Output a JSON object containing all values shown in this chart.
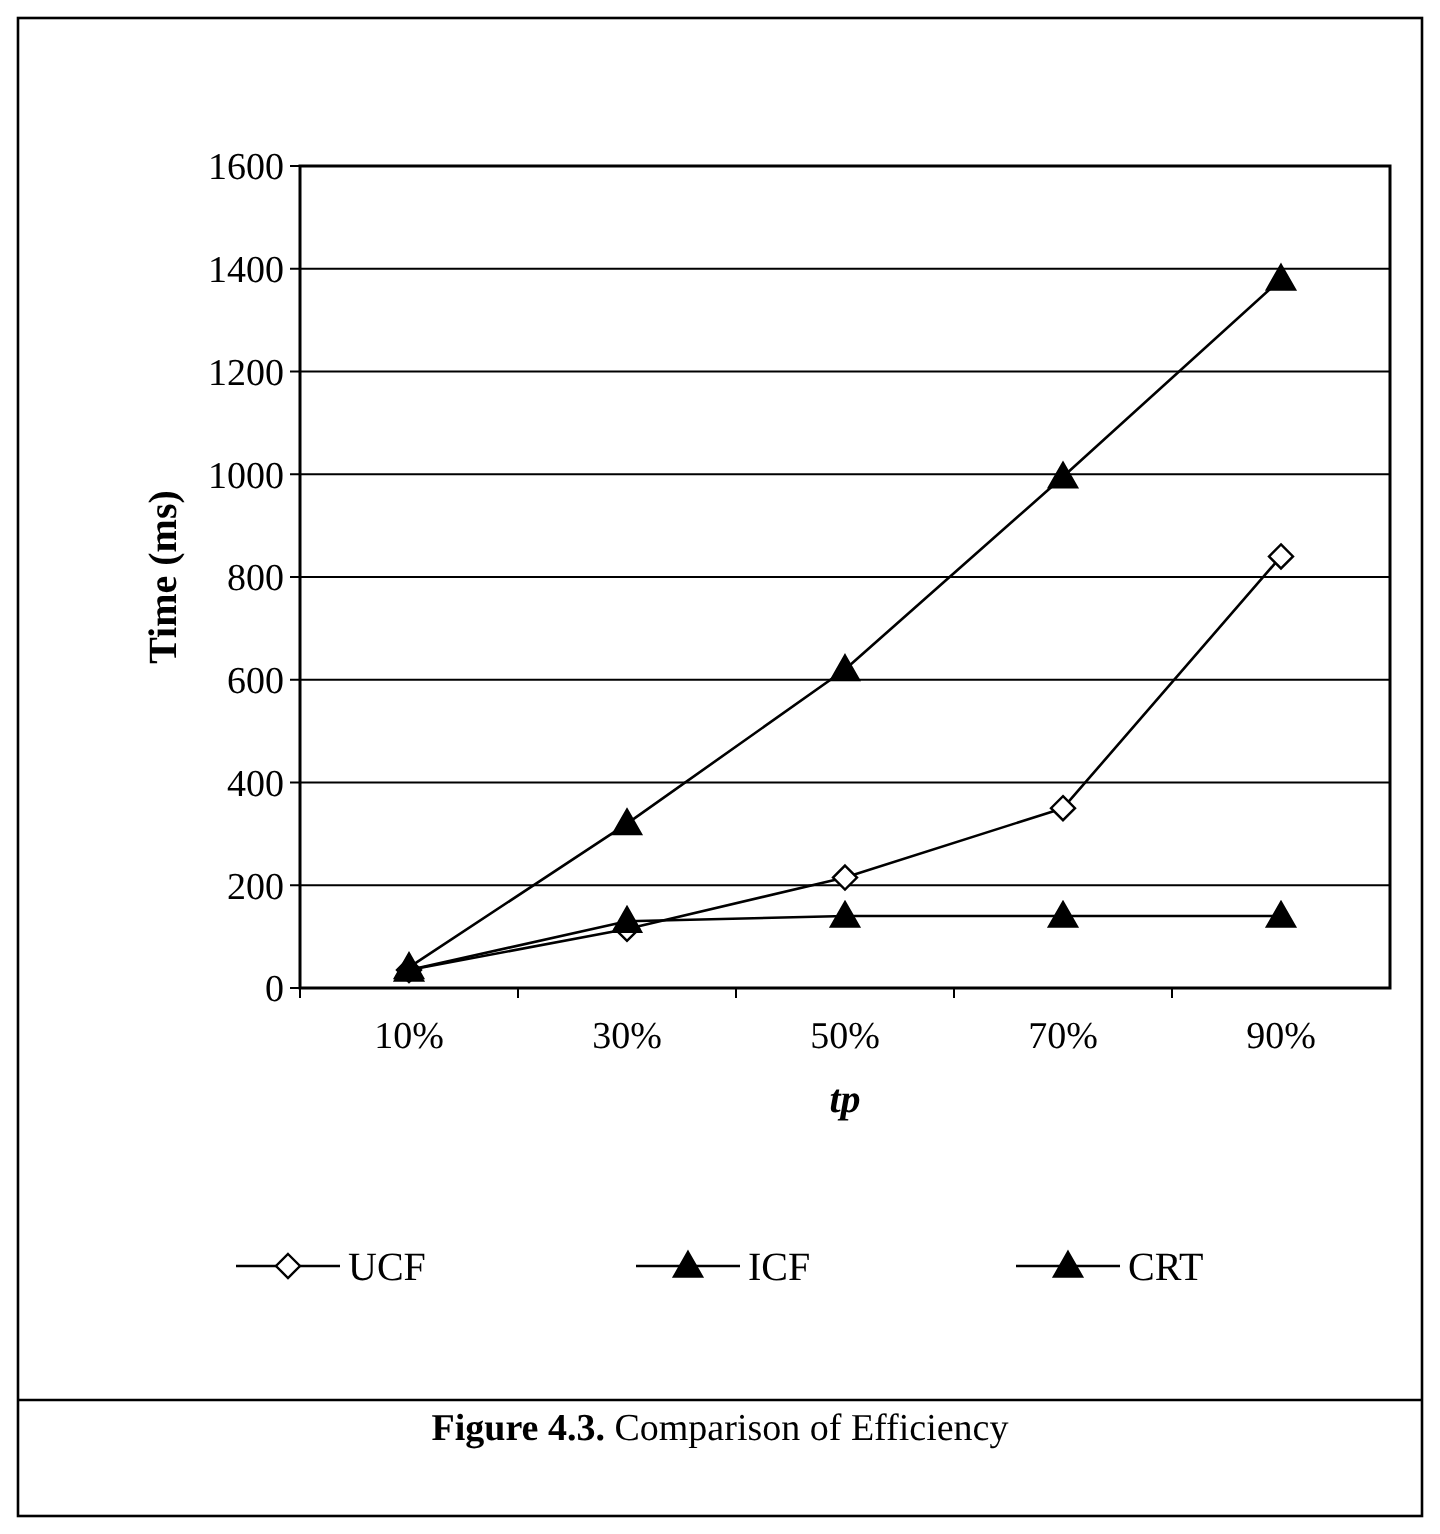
{
  "chart_data": {
    "type": "line",
    "xlabel": "tp",
    "ylabel": "Time (ms)",
    "categories": [
      "10%",
      "30%",
      "50%",
      "70%",
      "90%"
    ],
    "series": [
      {
        "name": "UCF",
        "color": "#000000",
        "marker": "diamond",
        "values": [
          35,
          115,
          215,
          350,
          840
        ]
      },
      {
        "name": "ICF",
        "color": "#000000",
        "marker": "triangle",
        "values": [
          40,
          320,
          620,
          995,
          1380
        ]
      },
      {
        "name": "CRT",
        "color": "#000000",
        "marker": "triangle",
        "values": [
          35,
          130,
          140,
          140,
          140
        ]
      }
    ],
    "ylim": [
      0,
      1600
    ],
    "yticks": [
      0,
      200,
      400,
      600,
      800,
      1000,
      1200,
      1400,
      1600
    ],
    "grid": "y",
    "legend": "bottom",
    "line_style": "solid",
    "annotations": [
      "Figure 4.3. Comparison of Efficiency"
    ]
  }
}
